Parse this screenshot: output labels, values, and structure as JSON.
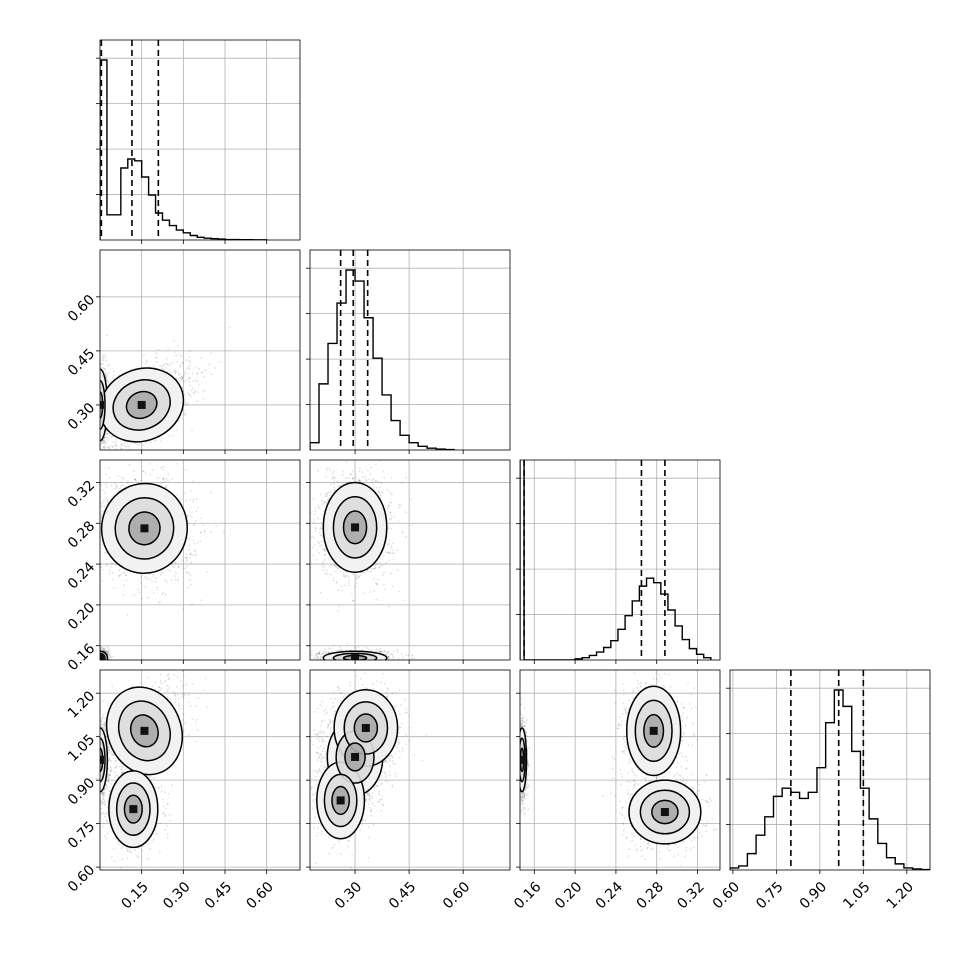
{
  "chart_data": {
    "type": "corner",
    "grid": true,
    "title": "",
    "parameters": [
      {
        "ticks": [
          "0.15",
          "0.30",
          "0.45",
          "0.60"
        ],
        "range": [
          0.0,
          0.72
        ]
      },
      {
        "ticks": [
          "0.30",
          "0.45",
          "0.60"
        ],
        "range": [
          0.175,
          0.73
        ]
      },
      {
        "ticks": [
          "0.16",
          "0.20",
          "0.24",
          "0.28",
          "0.32"
        ],
        "range": [
          0.146,
          0.342
        ]
      },
      {
        "ticks": [
          "0.60",
          "0.75",
          "0.90",
          "1.05",
          "1.20"
        ],
        "range": [
          0.59,
          1.28
        ]
      }
    ],
    "row_tick_labels": [
      [],
      [
        "0.30",
        "0.45",
        "0.60"
      ],
      [
        "0.16",
        "0.20",
        "0.24",
        "0.28",
        "0.32"
      ],
      [
        "0.60",
        "0.75",
        "0.90",
        "1.05",
        "1.20"
      ]
    ],
    "col_tick_labels": [
      [
        "0.15",
        "0.30",
        "0.45",
        "0.60"
      ],
      [
        "0.30",
        "0.45",
        "0.60"
      ],
      [
        "0.16",
        "0.20",
        "0.24",
        "0.28",
        "0.32"
      ],
      [
        "0.60",
        "0.75",
        "0.90",
        "1.05",
        "1.20"
      ]
    ],
    "histograms": [
      {
        "quantiles": [
          0.005,
          0.115,
          0.21
        ],
        "bin_edges": [
          0.0,
          0.025,
          0.05,
          0.075,
          0.1,
          0.125,
          0.15,
          0.175,
          0.2,
          0.225,
          0.25,
          0.275,
          0.3,
          0.325,
          0.35,
          0.375,
          0.4,
          0.425,
          0.45,
          0.5,
          0.55,
          0.6
        ],
        "counts": [
          200,
          28,
          28,
          80,
          90,
          88,
          70,
          50,
          30,
          22,
          16,
          11,
          8,
          5,
          3,
          2,
          1.5,
          1,
          0.5,
          0.3,
          0.2
        ]
      },
      {
        "quantiles": [
          0.26,
          0.295,
          0.335
        ],
        "bin_edges": [
          0.175,
          0.2,
          0.225,
          0.25,
          0.275,
          0.3,
          0.325,
          0.35,
          0.375,
          0.4,
          0.425,
          0.45,
          0.475,
          0.5,
          0.525,
          0.55,
          0.575
        ],
        "counts": [
          4,
          36,
          58,
          80,
          98,
          92,
          72,
          50,
          30,
          16,
          8,
          4,
          2,
          1,
          0.5,
          0.2
        ]
      },
      {
        "quantiles": [
          0.15,
          0.265,
          0.288
        ],
        "bin_edges": [
          0.146,
          0.15,
          0.2,
          0.207,
          0.214,
          0.221,
          0.228,
          0.235,
          0.242,
          0.249,
          0.256,
          0.263,
          0.27,
          0.277,
          0.284,
          0.291,
          0.298,
          0.305,
          0.312,
          0.319,
          0.326,
          0.333
        ],
        "counts": [
          380,
          0,
          1,
          2,
          4,
          7,
          11,
          17,
          27,
          39,
          52,
          65,
          72,
          68,
          58,
          44,
          30,
          18,
          10,
          5,
          2
        ],
        "clip_first": true
      },
      {
        "quantiles": [
          0.8,
          0.965,
          1.05
        ],
        "bin_edges": [
          0.59,
          0.62,
          0.65,
          0.68,
          0.71,
          0.74,
          0.77,
          0.8,
          0.83,
          0.86,
          0.89,
          0.92,
          0.95,
          0.98,
          1.01,
          1.04,
          1.07,
          1.1,
          1.13,
          1.16,
          1.19,
          1.22,
          1.25,
          1.28
        ],
        "counts": [
          1,
          2,
          8,
          17,
          26,
          36,
          40,
          38,
          35,
          38,
          50,
          72,
          88,
          80,
          58,
          40,
          25,
          13,
          6,
          3,
          1,
          0.5,
          0.2
        ]
      }
    ],
    "pairs": [
      {
        "row": 1,
        "col": 0,
        "clusters": [
          {
            "cx": 0.0,
            "cy": 0.3,
            "sx": 0.012,
            "sy": 0.045,
            "w": 0.45
          },
          {
            "cx": 0.15,
            "cy": 0.3,
            "sx": 0.07,
            "sy": 0.045,
            "w": 0.55,
            "corr": 0.55
          }
        ]
      },
      {
        "row": 2,
        "col": 0,
        "clusters": [
          {
            "cx": 0.0,
            "cy": 0.148,
            "sx": 0.012,
            "sy": 0.003,
            "w": 0.45
          },
          {
            "cx": 0.16,
            "cy": 0.275,
            "sx": 0.07,
            "sy": 0.02,
            "w": 0.55,
            "corr": -0.15
          }
        ]
      },
      {
        "row": 2,
        "col": 1,
        "clusters": [
          {
            "cx": 0.3,
            "cy": 0.148,
            "sx": 0.04,
            "sy": 0.003,
            "w": 0.45
          },
          {
            "cx": 0.3,
            "cy": 0.276,
            "sx": 0.04,
            "sy": 0.02,
            "w": 0.55
          }
        ]
      },
      {
        "row": 3,
        "col": 0,
        "clusters": [
          {
            "cx": 0.0,
            "cy": 0.97,
            "sx": 0.012,
            "sy": 0.05,
            "w": 0.45
          },
          {
            "cx": 0.16,
            "cy": 1.07,
            "sx": 0.06,
            "sy": 0.07,
            "w": 0.3,
            "corr": 0.5
          },
          {
            "cx": 0.12,
            "cy": 0.8,
            "sx": 0.04,
            "sy": 0.06,
            "w": 0.25
          }
        ]
      },
      {
        "row": 3,
        "col": 1,
        "clusters": [
          {
            "cx": 0.3,
            "cy": 0.98,
            "sx": 0.035,
            "sy": 0.06,
            "w": 0.55
          },
          {
            "cx": 0.26,
            "cy": 0.83,
            "sx": 0.03,
            "sy": 0.06,
            "w": 0.2
          },
          {
            "cx": 0.33,
            "cy": 1.08,
            "sx": 0.04,
            "sy": 0.06,
            "w": 0.25
          }
        ]
      },
      {
        "row": 3,
        "col": 2,
        "clusters": [
          {
            "cx": 0.148,
            "cy": 0.97,
            "sx": 0.002,
            "sy": 0.05,
            "w": 0.45
          },
          {
            "cx": 0.277,
            "cy": 1.07,
            "sx": 0.012,
            "sy": 0.07,
            "w": 0.27
          },
          {
            "cx": 0.288,
            "cy": 0.79,
            "sx": 0.016,
            "sy": 0.05,
            "w": 0.28
          }
        ]
      }
    ]
  }
}
